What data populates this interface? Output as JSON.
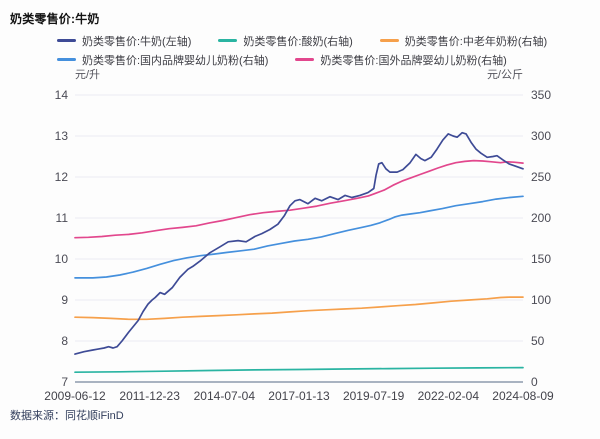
{
  "title": "奶类零售价:牛奶",
  "footer": {
    "source": "数据来源：同花顺iFinD"
  },
  "colors": {
    "grid_line": "#ececf4",
    "axis_line": "#a9b3c1",
    "title_text": "#141414",
    "tick_text": "#4b4b55",
    "footer_text": "#323e5c"
  },
  "legend": {
    "rows": [
      [
        0,
        1,
        2
      ],
      [
        3,
        4
      ]
    ]
  },
  "chart_data": {
    "type": "line",
    "title": "奶类零售价:牛奶",
    "grid": true,
    "legend_position": "top",
    "left_axis": {
      "unit": "元/升",
      "min": 7,
      "max": 14,
      "ticks": [
        14,
        13,
        12,
        11,
        10,
        9,
        8,
        7
      ]
    },
    "right_axis": {
      "unit": "元/公斤",
      "min": 0,
      "max": 350,
      "ticks": [
        350,
        300,
        250,
        200,
        150,
        100,
        50,
        0
      ]
    },
    "x_axis": {
      "tick_labels": [
        "2009-06-12",
        "2011-12-23",
        "2014-07-04",
        "2017-01-13",
        "2019-07-19",
        "2022-02-04",
        "2024-08-09"
      ],
      "note": "t in series points is the fraction of the x-axis span from 2009-06-12 (t=0) to 2024-08-09 (t=1)"
    },
    "draw_order": [
      1,
      2,
      3,
      4,
      0
    ],
    "series": [
      {
        "id": "milk",
        "name": "奶类零售价:牛奶(左轴)",
        "axis": "left",
        "color": "#3e4b96",
        "points": [
          [
            0,
            7.68
          ],
          [
            0.02,
            7.74
          ],
          [
            0.04,
            7.78
          ],
          [
            0.05,
            7.8
          ],
          [
            0.065,
            7.83
          ],
          [
            0.075,
            7.86
          ],
          [
            0.085,
            7.83
          ],
          [
            0.094,
            7.86
          ],
          [
            0.105,
            8.0
          ],
          [
            0.12,
            8.22
          ],
          [
            0.141,
            8.5
          ],
          [
            0.152,
            8.72
          ],
          [
            0.163,
            8.9
          ],
          [
            0.172,
            9.0
          ],
          [
            0.179,
            9.06
          ],
          [
            0.19,
            9.18
          ],
          [
            0.2,
            9.14
          ],
          [
            0.217,
            9.3
          ],
          [
            0.234,
            9.55
          ],
          [
            0.252,
            9.75
          ],
          [
            0.263,
            9.82
          ],
          [
            0.279,
            9.95
          ],
          [
            0.301,
            10.15
          ],
          [
            0.324,
            10.3
          ],
          [
            0.342,
            10.42
          ],
          [
            0.364,
            10.45
          ],
          [
            0.382,
            10.42
          ],
          [
            0.402,
            10.55
          ],
          [
            0.417,
            10.62
          ],
          [
            0.435,
            10.72
          ],
          [
            0.453,
            10.85
          ],
          [
            0.467,
            11.05
          ],
          [
            0.48,
            11.3
          ],
          [
            0.491,
            11.42
          ],
          [
            0.502,
            11.45
          ],
          [
            0.52,
            11.35
          ],
          [
            0.536,
            11.48
          ],
          [
            0.551,
            11.42
          ],
          [
            0.569,
            11.52
          ],
          [
            0.587,
            11.45
          ],
          [
            0.603,
            11.55
          ],
          [
            0.618,
            11.5
          ],
          [
            0.636,
            11.55
          ],
          [
            0.654,
            11.62
          ],
          [
            0.667,
            11.72
          ],
          [
            0.672,
            12.05
          ],
          [
            0.678,
            12.32
          ],
          [
            0.685,
            12.35
          ],
          [
            0.694,
            12.2
          ],
          [
            0.703,
            12.12
          ],
          [
            0.719,
            12.12
          ],
          [
            0.732,
            12.18
          ],
          [
            0.748,
            12.35
          ],
          [
            0.761,
            12.55
          ],
          [
            0.772,
            12.45
          ],
          [
            0.781,
            12.4
          ],
          [
            0.795,
            12.48
          ],
          [
            0.808,
            12.68
          ],
          [
            0.821,
            12.9
          ],
          [
            0.833,
            13.05
          ],
          [
            0.844,
            13.0
          ],
          [
            0.853,
            12.97
          ],
          [
            0.864,
            13.08
          ],
          [
            0.873,
            13.05
          ],
          [
            0.884,
            12.85
          ],
          [
            0.895,
            12.68
          ],
          [
            0.906,
            12.58
          ],
          [
            0.92,
            12.48
          ],
          [
            0.933,
            12.5
          ],
          [
            0.942,
            12.52
          ],
          [
            0.955,
            12.42
          ],
          [
            0.969,
            12.32
          ],
          [
            0.982,
            12.27
          ],
          [
            1,
            12.2
          ]
        ]
      },
      {
        "id": "yogurt",
        "name": "奶类零售价:酸奶(右轴)",
        "axis": "right",
        "color": "#2ab4a2",
        "points": [
          [
            0,
            12
          ],
          [
            0.1,
            12.5
          ],
          [
            0.2,
            13.2
          ],
          [
            0.3,
            14
          ],
          [
            0.4,
            14.8
          ],
          [
            0.5,
            15.3
          ],
          [
            0.6,
            15.8
          ],
          [
            0.7,
            16.3
          ],
          [
            0.8,
            16.8
          ],
          [
            0.9,
            17.2
          ],
          [
            1,
            17.5
          ]
        ]
      },
      {
        "id": "elderly-milk-powder",
        "name": "奶类零售价:中老年奶粉(右轴)",
        "axis": "right",
        "color": "#f6a04b",
        "points": [
          [
            0,
            79
          ],
          [
            0.04,
            78.5
          ],
          [
            0.08,
            77.5
          ],
          [
            0.12,
            76.5
          ],
          [
            0.16,
            76.5
          ],
          [
            0.2,
            77.5
          ],
          [
            0.24,
            79
          ],
          [
            0.28,
            80
          ],
          [
            0.32,
            81
          ],
          [
            0.36,
            82
          ],
          [
            0.4,
            83
          ],
          [
            0.44,
            84
          ],
          [
            0.48,
            85.5
          ],
          [
            0.52,
            87
          ],
          [
            0.56,
            88
          ],
          [
            0.6,
            89
          ],
          [
            0.64,
            90
          ],
          [
            0.68,
            91.5
          ],
          [
            0.72,
            93
          ],
          [
            0.76,
            94.5
          ],
          [
            0.8,
            96.5
          ],
          [
            0.84,
            98.5
          ],
          [
            0.88,
            100
          ],
          [
            0.92,
            101.5
          ],
          [
            0.95,
            103
          ],
          [
            0.97,
            103.5
          ],
          [
            1,
            103.5
          ]
        ]
      },
      {
        "id": "domestic-infant-formula",
        "name": "奶类零售价:国内品牌婴幼儿奶粉(右轴)",
        "axis": "right",
        "color": "#4590dd",
        "points": [
          [
            0,
            127
          ],
          [
            0.04,
            127
          ],
          [
            0.07,
            128
          ],
          [
            0.1,
            130.5
          ],
          [
            0.13,
            134
          ],
          [
            0.16,
            138.5
          ],
          [
            0.19,
            143.5
          ],
          [
            0.22,
            148
          ],
          [
            0.25,
            151.5
          ],
          [
            0.28,
            154
          ],
          [
            0.31,
            156
          ],
          [
            0.34,
            158
          ],
          [
            0.37,
            160
          ],
          [
            0.4,
            162
          ],
          [
            0.43,
            166
          ],
          [
            0.46,
            169
          ],
          [
            0.49,
            172
          ],
          [
            0.52,
            174
          ],
          [
            0.55,
            177
          ],
          [
            0.58,
            181
          ],
          [
            0.61,
            185
          ],
          [
            0.64,
            188.5
          ],
          [
            0.66,
            191
          ],
          [
            0.68,
            194
          ],
          [
            0.7,
            198
          ],
          [
            0.715,
            201.5
          ],
          [
            0.73,
            203.5
          ],
          [
            0.75,
            205
          ],
          [
            0.77,
            206.5
          ],
          [
            0.79,
            208.5
          ],
          [
            0.82,
            211.5
          ],
          [
            0.85,
            215
          ],
          [
            0.88,
            217.5
          ],
          [
            0.91,
            220
          ],
          [
            0.94,
            223
          ],
          [
            0.97,
            225
          ],
          [
            1,
            226.5
          ]
        ]
      },
      {
        "id": "foreign-infant-formula",
        "name": "奶类零售价:国外品牌婴幼儿奶粉(右轴)",
        "axis": "right",
        "color": "#e2478d",
        "points": [
          [
            0,
            176
          ],
          [
            0.03,
            176.5
          ],
          [
            0.06,
            177.5
          ],
          [
            0.09,
            179
          ],
          [
            0.12,
            180
          ],
          [
            0.15,
            182
          ],
          [
            0.18,
            184.5
          ],
          [
            0.21,
            187
          ],
          [
            0.24,
            188.5
          ],
          [
            0.27,
            190.5
          ],
          [
            0.3,
            194
          ],
          [
            0.33,
            197
          ],
          [
            0.36,
            200.5
          ],
          [
            0.39,
            204
          ],
          [
            0.42,
            206.5
          ],
          [
            0.45,
            208
          ],
          [
            0.48,
            209.5
          ],
          [
            0.51,
            212
          ],
          [
            0.54,
            214.5
          ],
          [
            0.57,
            218
          ],
          [
            0.6,
            221
          ],
          [
            0.63,
            224
          ],
          [
            0.655,
            227
          ],
          [
            0.67,
            230
          ],
          [
            0.69,
            234
          ],
          [
            0.71,
            240
          ],
          [
            0.73,
            245
          ],
          [
            0.75,
            249
          ],
          [
            0.77,
            253
          ],
          [
            0.79,
            257
          ],
          [
            0.81,
            261
          ],
          [
            0.83,
            264.5
          ],
          [
            0.85,
            267.5
          ],
          [
            0.87,
            269
          ],
          [
            0.89,
            270
          ],
          [
            0.91,
            269.5
          ],
          [
            0.93,
            268.5
          ],
          [
            0.95,
            267.5
          ],
          [
            0.965,
            268.5
          ],
          [
            0.98,
            268
          ],
          [
            1,
            267
          ]
        ]
      }
    ]
  }
}
